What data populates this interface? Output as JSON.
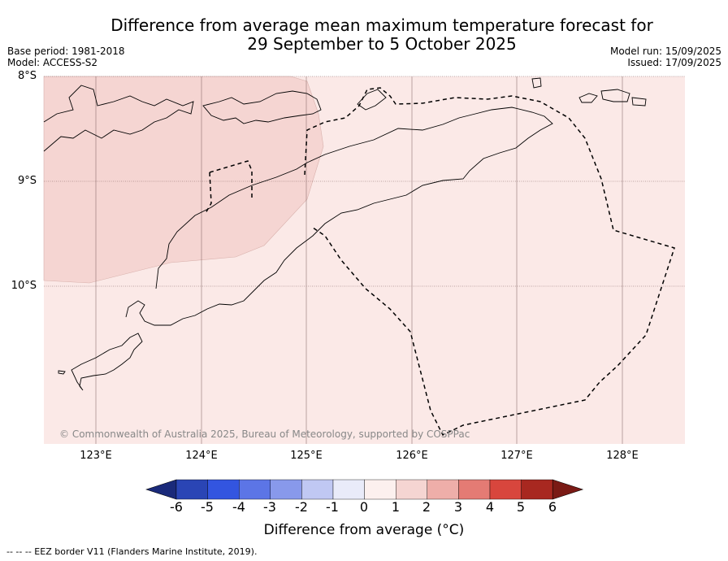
{
  "title": {
    "line1": "Difference from average mean maximum temperature forecast for",
    "line2": "29 September to 5 October 2025"
  },
  "meta": {
    "base_period": "Base period: 1981-2018",
    "model": "Model: ACCESS-S2",
    "model_run": "Model run: 15/09/2025",
    "issued": "Issued: 17/09/2025"
  },
  "map": {
    "lat_labels": [
      "8°S",
      "9°S",
      "10°S"
    ],
    "lon_labels": [
      "123°E",
      "124°E",
      "125°E",
      "126°E",
      "127°E",
      "128°E"
    ],
    "credit": "© Commonwealth of Australia 2025, Bureau of Meteorology, supported by COSPPac",
    "fill_colors": {
      "anomaly_0_1": "#fbe9e7",
      "anomaly_1_2": "#f5d5d2",
      "coast": "#000000",
      "grid": "#7a5a5a"
    }
  },
  "colorbar": {
    "ticks": [
      "-6",
      "-5",
      "-4",
      "-3",
      "-2",
      "-1",
      "0",
      "1",
      "2",
      "3",
      "4",
      "5",
      "6"
    ],
    "colors": [
      "#1a2a7a",
      "#2a45b5",
      "#3355e0",
      "#5c75e6",
      "#8899eb",
      "#c0c8f3",
      "#e9ebf9",
      "#fcf0ee",
      "#f5d5d2",
      "#eeaea9",
      "#e47b74",
      "#d8463d",
      "#a82820",
      "#7a1a15"
    ],
    "title": "Difference from average (°C)"
  },
  "footnote": "--  --  -- EEZ border V11 (Flanders Marine Institute, 2019)."
}
